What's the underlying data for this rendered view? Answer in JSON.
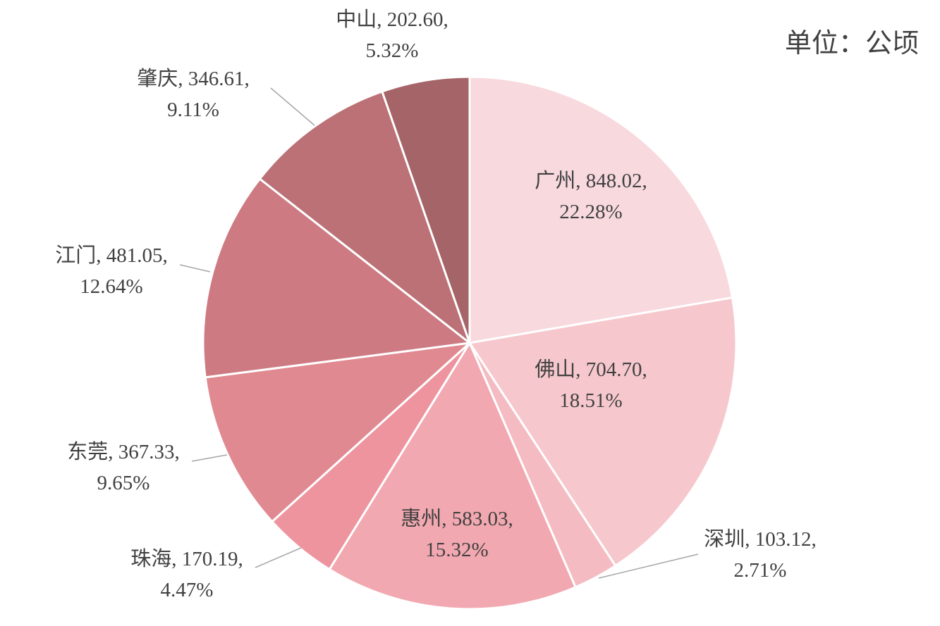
{
  "unit_label": "单位：公顷",
  "chart_data": {
    "type": "pie",
    "title": "",
    "unit": "单位：公顷",
    "start_angle_deg": 0,
    "direction": "clockwise",
    "slices": [
      {
        "label": "广州",
        "value": 848.02,
        "value_text": "848.02",
        "percent": "22.28%",
        "color": "#f8d9de"
      },
      {
        "label": "佛山",
        "value": 704.7,
        "value_text": "704.70",
        "percent": "18.51%",
        "color": "#f6c8cd"
      },
      {
        "label": "深圳",
        "value": 103.12,
        "value_text": "103.12",
        "percent": "2.71%",
        "color": "#f4bcc2"
      },
      {
        "label": "惠州",
        "value": 583.03,
        "value_text": "583.03",
        "percent": "15.32%",
        "color": "#f2a8b0"
      },
      {
        "label": "珠海",
        "value": 170.19,
        "value_text": "170.19",
        "percent": "4.47%",
        "color": "#ee949e"
      },
      {
        "label": "东莞",
        "value": 367.33,
        "value_text": "367.33",
        "percent": "9.65%",
        "color": "#e08991"
      },
      {
        "label": "江门",
        "value": 481.05,
        "value_text": "481.05",
        "percent": "12.64%",
        "color": "#ce7a82"
      },
      {
        "label": "肇庆",
        "value": 346.61,
        "value_text": "346.61",
        "percent": "9.11%",
        "color": "#bb7176"
      },
      {
        "label": "中山",
        "value": 202.6,
        "value_text": "202.60",
        "percent": "5.32%",
        "color": "#a56468"
      }
    ]
  }
}
